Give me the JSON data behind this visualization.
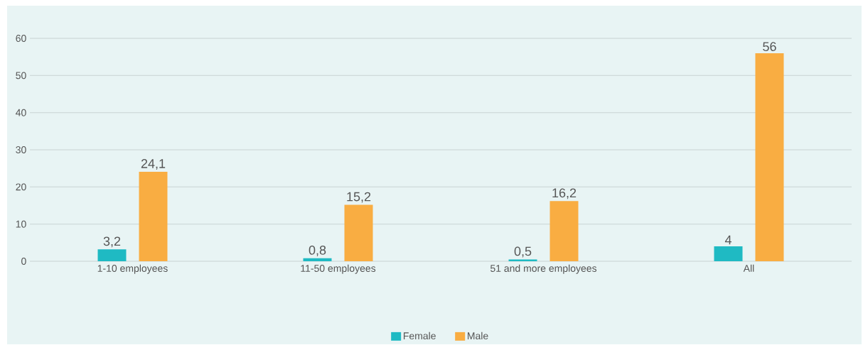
{
  "chart_data": {
    "type": "bar",
    "categories": [
      "1-10 employees",
      "11-50 employees",
      "51 and more employees",
      "All"
    ],
    "series": [
      {
        "name": "Female",
        "color": "#1fbac3",
        "values": [
          3.2,
          0.8,
          0.5,
          4
        ],
        "value_labels": [
          "3,2",
          "0,8",
          "0,5",
          "4"
        ]
      },
      {
        "name": "Male",
        "color": "#f9ad42",
        "values": [
          24.1,
          15.2,
          16.2,
          56
        ],
        "value_labels": [
          "24,1",
          "15,2",
          "16,2",
          "56"
        ]
      }
    ],
    "ylim": [
      0,
      60
    ],
    "yticks": [
      0,
      10,
      20,
      30,
      40,
      50,
      60
    ],
    "grid": "y",
    "legend": "bottom"
  }
}
